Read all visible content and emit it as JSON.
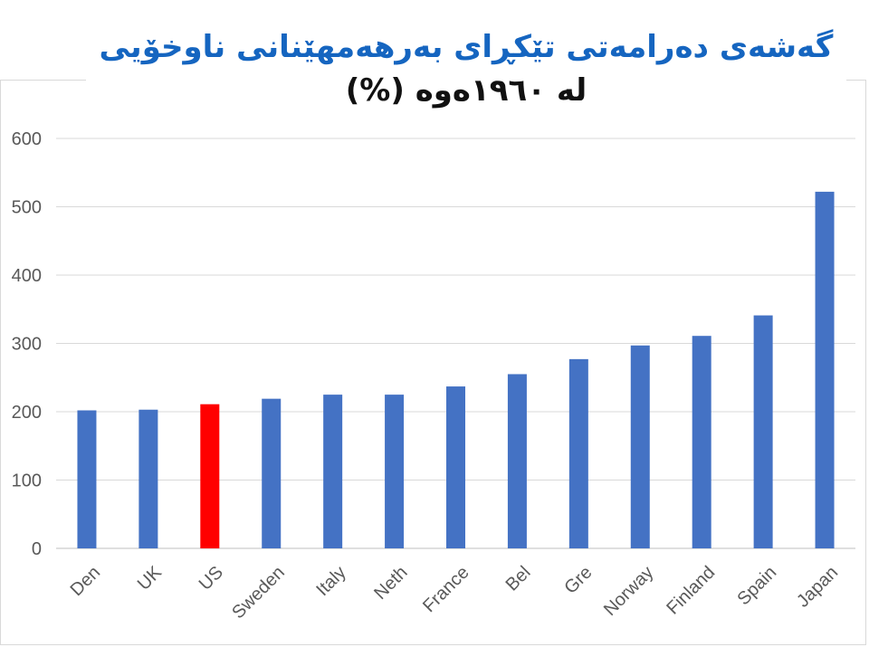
{
  "chart_data": {
    "type": "bar",
    "title_line1": "گەشەی دەرامەتی تێکڕای بەرهەمهێنانی ناوخۆیی",
    "title_line2": "لە ١٩٦٠ەوە (%)",
    "categories": [
      "Den",
      "UK",
      "US",
      "Sweden",
      "Italy",
      "Neth",
      "France",
      "Bel",
      "Gre",
      "Norway",
      "Finland",
      "Spain",
      "Japan"
    ],
    "values": [
      202,
      203,
      211,
      219,
      225,
      225,
      237,
      255,
      277,
      297,
      311,
      341,
      522
    ],
    "colors": [
      "#4472c4",
      "#4472c4",
      "#ff0000",
      "#4472c4",
      "#4472c4",
      "#4472c4",
      "#4472c4",
      "#4472c4",
      "#4472c4",
      "#4472c4",
      "#4472c4",
      "#4472c4",
      "#4472c4"
    ],
    "yticks": [
      "0",
      "100",
      "200",
      "300",
      "400",
      "500",
      "600"
    ],
    "ylim": [
      0,
      600
    ],
    "grid": true,
    "xlabel": "",
    "ylabel": "",
    "gridline_color": "#d9d9d9",
    "title_color": "#1565c0"
  }
}
